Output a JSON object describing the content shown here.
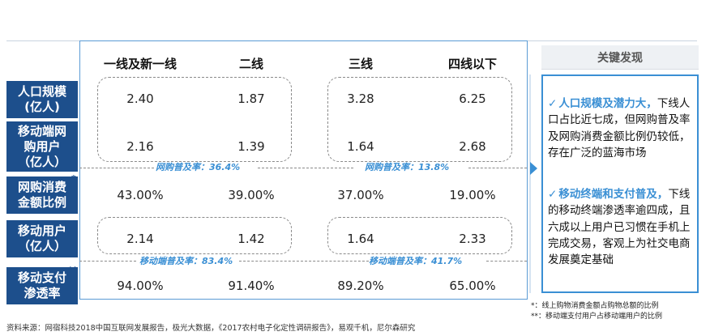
{
  "columns": [
    "一线及新一线",
    "二线",
    "三线",
    "四线以下"
  ],
  "rows": [
    {
      "label": "人口规模\n(亿人)",
      "values": [
        "2.40",
        "1.87",
        "3.28",
        "6.25"
      ],
      "asterisk": ""
    },
    {
      "label": "移动端网\n购用户\n（亿人）",
      "values": [
        "2.16",
        "1.39",
        "1.64",
        "2.68"
      ],
      "asterisk": ""
    },
    {
      "label": "网购消费\n金额比例",
      "values": [
        "43.00%",
        "39.00%",
        "37.00%",
        "19.00%"
      ],
      "asterisk": "*"
    },
    {
      "label": "移动用户\n（亿人）",
      "values": [
        "2.14",
        "1.42",
        "1.64",
        "2.33"
      ],
      "asterisk": ""
    },
    {
      "label": "移动支付\n渗透率",
      "values": [
        "94.00%",
        "91.40%",
        "89.20%",
        "65.00%"
      ],
      "asterisk": "**"
    }
  ],
  "penetration": {
    "online_high": "网购普及率：36.4%",
    "online_low": "网购普及率：13.8%",
    "mobile_high": "移动端普及率：83.4%",
    "mobile_low": "移动端普及率：41.7%"
  },
  "findings": {
    "title": "关键发现",
    "items": [
      {
        "highlight": "人口规模及潜力大，",
        "text": "下线人口占比近七成，但网购普及率及网购消费金额比例仍较低，存在广泛的蓝海市场"
      },
      {
        "highlight": "移动终端和支付普及，",
        "text": "下线的移动终端渗透率逾四成，且六成以上用户已习惯在手机上完成交易，客观上为社交电商发展奠定基础"
      }
    ]
  },
  "notes": [
    "*：线上购物消费金额占购物总额的比例",
    "**：移动端支付用户占移动端用户的比例"
  ],
  "source": "资料来源：网宿科技2018中国互联网发展报告，极光大数据，《2017农村电子化定性调研报告》，易观千机，尼尔森研究",
  "colors": {
    "label_bg": "#1d4f8c",
    "accent": "#3a8fd4"
  }
}
